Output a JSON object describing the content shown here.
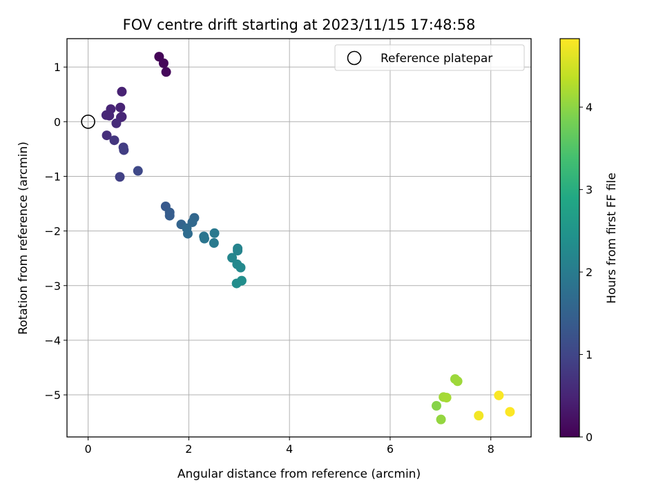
{
  "chart_data": {
    "type": "scatter",
    "title": "FOV centre drift starting at 2023/11/15 17:48:58",
    "xlabel": "Angular distance from reference (arcmin)",
    "ylabel": "Rotation from reference (arcmin)",
    "xlim": [
      -0.42,
      8.8
    ],
    "ylim": [
      -5.77,
      1.52
    ],
    "xticks": [
      0,
      2,
      4,
      6,
      8
    ],
    "yticks": [
      1,
      0,
      -1,
      -2,
      -3,
      -4,
      -5
    ],
    "xtick_labels": [
      "0",
      "2",
      "4",
      "6",
      "8"
    ],
    "ytick_labels": [
      "1",
      "0",
      "−1",
      "−2",
      "−3",
      "−4",
      "−5"
    ],
    "grid": true,
    "colormap": "viridis",
    "legend": {
      "placement": "top-right",
      "entries": [
        {
          "label": "Reference platepar",
          "marker": "open-circle",
          "x": 0,
          "y": 0
        }
      ]
    },
    "colorbar": {
      "label": "Hours from first FF file",
      "range": [
        0,
        4.83
      ],
      "ticks": [
        0,
        1,
        2,
        3,
        4
      ],
      "tick_labels": [
        "0",
        "1",
        "2",
        "3",
        "4"
      ]
    },
    "points": [
      {
        "x": 1.41,
        "y": 1.19,
        "t": 0.05
      },
      {
        "x": 1.5,
        "y": 1.07,
        "t": 0.08
      },
      {
        "x": 1.55,
        "y": 0.91,
        "t": 0.1
      },
      {
        "x": 0.67,
        "y": 0.55,
        "t": 0.45
      },
      {
        "x": 0.45,
        "y": 0.23,
        "t": 0.5
      },
      {
        "x": 0.64,
        "y": 0.26,
        "t": 0.48
      },
      {
        "x": 0.36,
        "y": 0.12,
        "t": 0.55
      },
      {
        "x": 0.42,
        "y": 0.11,
        "t": 0.52
      },
      {
        "x": 0.65,
        "y": 0.08,
        "t": 0.5
      },
      {
        "x": 0.67,
        "y": 0.09,
        "t": 0.52
      },
      {
        "x": 0.56,
        "y": -0.03,
        "t": 0.6
      },
      {
        "x": 0.37,
        "y": -0.25,
        "t": 0.65
      },
      {
        "x": 0.52,
        "y": -0.34,
        "t": 0.75
      },
      {
        "x": 0.7,
        "y": -0.47,
        "t": 0.85
      },
      {
        "x": 0.71,
        "y": -0.52,
        "t": 0.87
      },
      {
        "x": 0.63,
        "y": -1.01,
        "t": 0.92
      },
      {
        "x": 0.99,
        "y": -0.9,
        "t": 1.05
      },
      {
        "x": 1.54,
        "y": -1.55,
        "t": 1.35
      },
      {
        "x": 1.62,
        "y": -1.66,
        "t": 1.4
      },
      {
        "x": 1.62,
        "y": -1.72,
        "t": 1.42
      },
      {
        "x": 1.85,
        "y": -1.88,
        "t": 1.55
      },
      {
        "x": 2.11,
        "y": -1.76,
        "t": 1.6
      },
      {
        "x": 2.07,
        "y": -1.84,
        "t": 1.62
      },
      {
        "x": 1.96,
        "y": -1.95,
        "t": 1.66
      },
      {
        "x": 1.98,
        "y": -2.05,
        "t": 1.7
      },
      {
        "x": 2.3,
        "y": -2.1,
        "t": 1.85
      },
      {
        "x": 2.31,
        "y": -2.14,
        "t": 1.87
      },
      {
        "x": 2.51,
        "y": -2.04,
        "t": 1.95
      },
      {
        "x": 2.5,
        "y": -2.22,
        "t": 1.97
      },
      {
        "x": 2.97,
        "y": -2.32,
        "t": 2.15
      },
      {
        "x": 2.97,
        "y": -2.36,
        "t": 2.17
      },
      {
        "x": 2.86,
        "y": -2.49,
        "t": 2.2
      },
      {
        "x": 2.96,
        "y": -2.61,
        "t": 2.25
      },
      {
        "x": 3.03,
        "y": -2.67,
        "t": 2.27
      },
      {
        "x": 3.05,
        "y": -2.91,
        "t": 2.35
      },
      {
        "x": 2.95,
        "y": -2.96,
        "t": 2.33
      },
      {
        "x": 7.29,
        "y": -4.71,
        "t": 4.1
      },
      {
        "x": 7.34,
        "y": -4.75,
        "t": 4.12
      },
      {
        "x": 7.06,
        "y": -5.04,
        "t": 4.15
      },
      {
        "x": 7.12,
        "y": -5.05,
        "t": 4.18
      },
      {
        "x": 6.92,
        "y": -5.2,
        "t": 3.95
      },
      {
        "x": 7.01,
        "y": -5.45,
        "t": 4.05
      },
      {
        "x": 7.76,
        "y": -5.38,
        "t": 4.75
      },
      {
        "x": 8.16,
        "y": -5.01,
        "t": 4.8
      },
      {
        "x": 8.38,
        "y": -5.31,
        "t": 4.82
      }
    ]
  }
}
